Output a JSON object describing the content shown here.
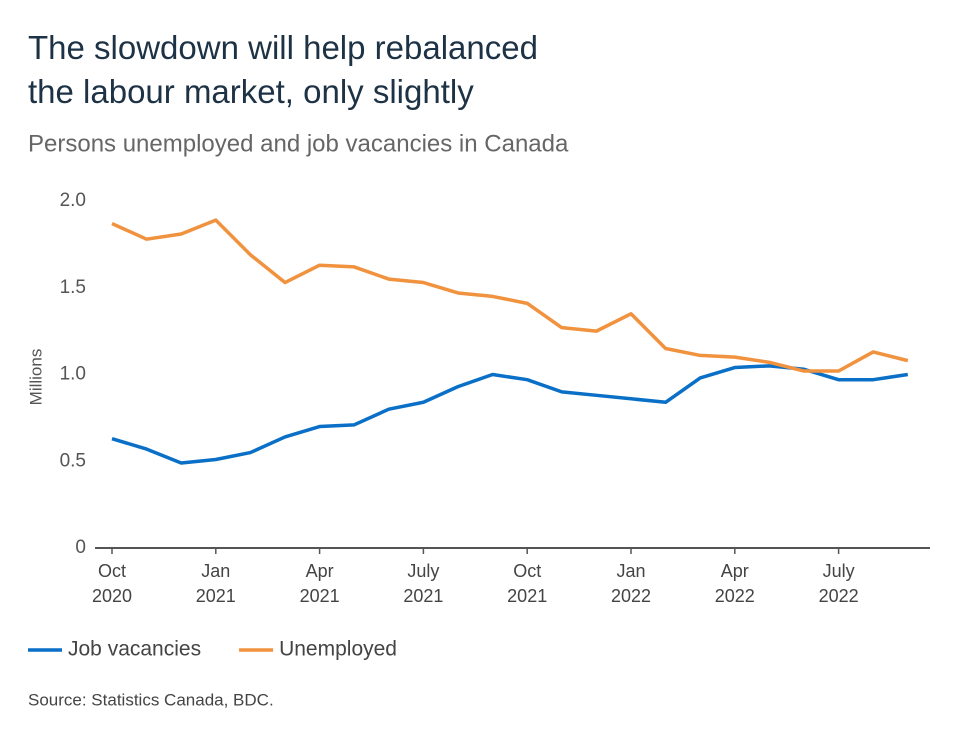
{
  "chart_data": {
    "type": "line",
    "title": "The slowdown will help rebalanced the labour market, only slightly",
    "subtitle": "Persons unemployed and job vacancies in Canada",
    "y_label": "Millions",
    "source": "Source: Statistics Canada, BDC.",
    "categories": [
      "Oct 2020",
      null,
      null,
      "Jan 2021",
      null,
      null,
      "Apr 2021",
      null,
      null,
      "July 2021",
      null,
      null,
      "Oct 2021",
      null,
      null,
      "Jan 2022",
      null,
      null,
      "Apr 2022",
      null,
      null,
      "July 2022",
      null,
      null
    ],
    "series": [
      {
        "name": "Job vacancies",
        "color": "#0a6fc6",
        "values": [
          0.63,
          0.57,
          0.49,
          0.51,
          0.55,
          0.64,
          0.7,
          0.71,
          0.8,
          0.84,
          0.93,
          1.0,
          0.97,
          0.9,
          0.88,
          0.86,
          0.84,
          0.98,
          1.04,
          1.05,
          1.03,
          0.97,
          0.97,
          1.0
        ]
      },
      {
        "name": "Unemployed",
        "color": "#f0923e",
        "values": [
          1.87,
          1.78,
          1.81,
          1.89,
          1.69,
          1.53,
          1.63,
          1.62,
          1.55,
          1.53,
          1.47,
          1.45,
          1.41,
          1.27,
          1.25,
          1.35,
          1.15,
          1.11,
          1.1,
          1.07,
          1.02,
          1.02,
          1.13,
          1.08
        ]
      }
    ],
    "ylim": [
      0,
      2.0
    ],
    "yticks": [
      0,
      0.5,
      {
        "value": 1.0,
        "label": "1.0"
      },
      1.5,
      {
        "value": 2.0,
        "label": "2.0"
      }
    ],
    "grid": false,
    "legend": "bottom-left"
  }
}
